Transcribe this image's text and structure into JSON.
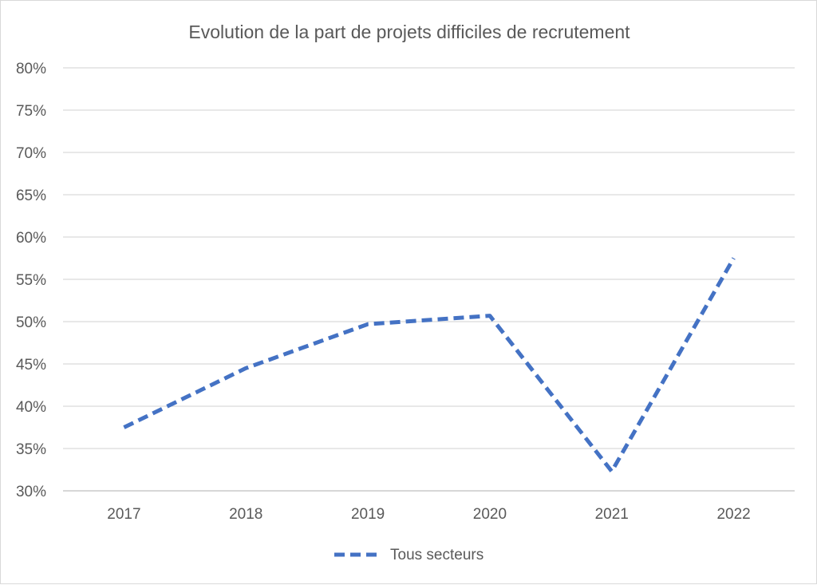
{
  "chart_data": {
    "type": "line",
    "title": "Evolution de la part de projets difficiles de recrutement",
    "xlabel": "",
    "ylabel": "",
    "categories": [
      "2017",
      "2018",
      "2019",
      "2020",
      "2021",
      "2022"
    ],
    "series": [
      {
        "name": "Tous secteurs",
        "values": [
          37.5,
          44.5,
          49.7,
          50.7,
          32.3,
          57.5
        ],
        "color": "#4472c4",
        "line_style": "dashed"
      }
    ],
    "ylim": [
      30,
      80
    ],
    "yticks": [
      "30%",
      "35%",
      "40%",
      "45%",
      "50%",
      "55%",
      "60%",
      "65%",
      "70%",
      "75%",
      "80%"
    ],
    "grid": "horizontal",
    "legend_position": "bottom"
  }
}
